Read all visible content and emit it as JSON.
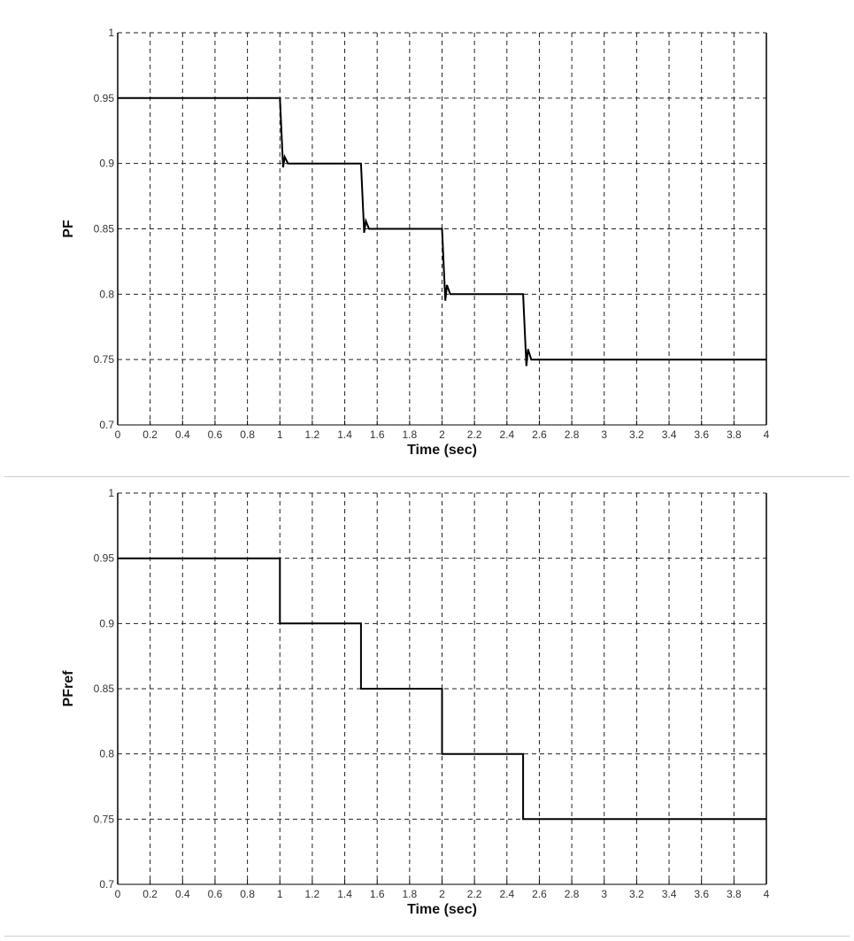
{
  "chart_data": [
    {
      "type": "line",
      "title": "",
      "xlabel": "Time (sec)",
      "ylabel": "PF",
      "xlim": [
        0,
        4
      ],
      "ylim": [
        0.7,
        1
      ],
      "grid": true,
      "x_ticks": [
        "0",
        "0.2",
        "0.4",
        "0.6",
        "0.8",
        "1",
        "1.2",
        "1.4",
        "1.6",
        "1.8",
        "2",
        "2.2",
        "2.4",
        "2.6",
        "2.8",
        "3",
        "3.2",
        "3.4",
        "3.6",
        "3.8",
        "4"
      ],
      "y_ticks": [
        "0.7",
        "0.75",
        "0.8",
        "0.85",
        "0.9",
        "0.95",
        "1"
      ],
      "series": [
        {
          "name": "PF",
          "x": [
            0,
            1.0,
            1.02,
            1.03,
            1.05,
            1.5,
            1.52,
            1.53,
            1.55,
            2.0,
            2.02,
            2.03,
            2.05,
            2.5,
            2.52,
            2.53,
            2.55,
            4.0
          ],
          "y": [
            0.95,
            0.95,
            0.897,
            0.905,
            0.9,
            0.9,
            0.847,
            0.856,
            0.85,
            0.85,
            0.795,
            0.807,
            0.8,
            0.8,
            0.745,
            0.758,
            0.75,
            0.75
          ]
        }
      ]
    },
    {
      "type": "line",
      "title": "",
      "xlabel": "Time (sec)",
      "ylabel": "PFref",
      "xlim": [
        0,
        4
      ],
      "ylim": [
        0.7,
        1
      ],
      "grid": true,
      "x_ticks": [
        "0",
        "0.2",
        "0.4",
        "0.6",
        "0.8",
        "1",
        "1.2",
        "1.4",
        "1.6",
        "1.8",
        "2",
        "2.2",
        "2.4",
        "2.6",
        "2.8",
        "3",
        "3.2",
        "3.4",
        "3.6",
        "3.8",
        "4"
      ],
      "y_ticks": [
        "0.7",
        "0.75",
        "0.8",
        "0.85",
        "0.9",
        "0.95",
        "1"
      ],
      "series": [
        {
          "name": "PFref",
          "x": [
            0,
            1.0,
            1.0,
            1.5,
            1.5,
            2.0,
            2.0,
            2.5,
            2.5,
            4.0
          ],
          "y": [
            0.95,
            0.95,
            0.9,
            0.9,
            0.85,
            0.85,
            0.8,
            0.8,
            0.75,
            0.75
          ]
        }
      ]
    }
  ]
}
